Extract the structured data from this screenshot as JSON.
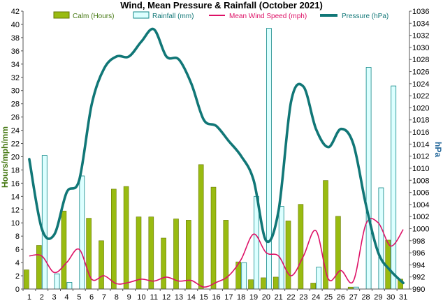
{
  "chart_data": {
    "type": "bar+line",
    "title": "Wind, Mean Pressure & Rainfall (October 2021)",
    "ylabel": "Hours/mph/mm",
    "y2label": "hPa",
    "ylim": [
      0,
      42
    ],
    "y2lim": [
      990,
      1036
    ],
    "yticks": [
      0,
      2,
      4,
      6,
      8,
      10,
      12,
      14,
      16,
      18,
      20,
      22,
      24,
      26,
      28,
      30,
      32,
      34,
      36,
      38,
      40,
      42
    ],
    "y2ticks": [
      990,
      992,
      994,
      996,
      998,
      1000,
      1002,
      1004,
      1006,
      1008,
      1010,
      1012,
      1014,
      1016,
      1018,
      1020,
      1022,
      1024,
      1026,
      1028,
      1030,
      1032,
      1034,
      1036
    ],
    "categories": [
      "1",
      "2",
      "3",
      "4",
      "5",
      "6",
      "7",
      "8",
      "9",
      "10",
      "11",
      "12",
      "13",
      "14",
      "15",
      "16",
      "17",
      "18",
      "19",
      "20",
      "21",
      "22",
      "23",
      "24",
      "25",
      "26",
      "27",
      "28",
      "29",
      "30",
      "31"
    ],
    "legend_position": "top",
    "grid": false,
    "colors": {
      "calm": "#99bb11",
      "calm_edge": "#667700",
      "rain": "#ddffff",
      "rain_edge": "#118888",
      "wind": "#dd1166",
      "pressure": "#117777",
      "axis_left": "#447711",
      "axis_right": "#226699"
    },
    "series": [
      {
        "name": "Calm (Hours)",
        "kind": "bar",
        "values": [
          2.9,
          6.6,
          0,
          11.8,
          0,
          10.7,
          7.3,
          15.1,
          15.5,
          10.9,
          10.9,
          7.7,
          10.6,
          10.4,
          18.8,
          15.4,
          10.4,
          4.1,
          1.4,
          1.7,
          1.8,
          10.3,
          12.8,
          0.9,
          16.4,
          11.0,
          0.3,
          0,
          0,
          7.4,
          1.5
        ]
      },
      {
        "name": "Rainfall (mm)",
        "kind": "bar",
        "values": [
          0,
          20.2,
          2.3,
          1.0,
          17.1,
          0,
          0,
          0,
          0,
          0,
          0,
          0,
          0,
          0,
          0,
          0,
          0,
          4.0,
          14.0,
          39.4,
          12.5,
          0,
          0,
          3.3,
          0,
          0,
          0.3,
          33.5,
          15.3,
          30.7,
          0
        ]
      },
      {
        "name": "Mean Wind Speed (mph)",
        "kind": "line",
        "axis": "left",
        "values": [
          5.0,
          5.0,
          2.5,
          4.0,
          6.0,
          1.5,
          2.0,
          0.8,
          1.0,
          1.5,
          1.2,
          1.8,
          1.2,
          1.3,
          0.3,
          1.0,
          2.0,
          4.5,
          8.3,
          5.5,
          5.0,
          2.0,
          5.0,
          8.8,
          1.5,
          2.8,
          1.2,
          9.8,
          10.0,
          6.5,
          9.0
        ]
      },
      {
        "name": "Pressure (hPa)",
        "kind": "line",
        "axis": "right",
        "values": [
          1011.5,
          1000.0,
          999.0,
          1006.0,
          1008.0,
          1020.5,
          1026.5,
          1028.5,
          1028.5,
          1031.0,
          1033.0,
          1028.5,
          1028.0,
          1024.0,
          1018.0,
          1017.0,
          1014.5,
          1012.0,
          1008.0,
          998.0,
          1003.0,
          1021.0,
          1023.5,
          1016.5,
          1013.5,
          1016.5,
          1014.0,
          1004.0,
          996.0,
          993.0,
          991.0
        ]
      }
    ]
  }
}
